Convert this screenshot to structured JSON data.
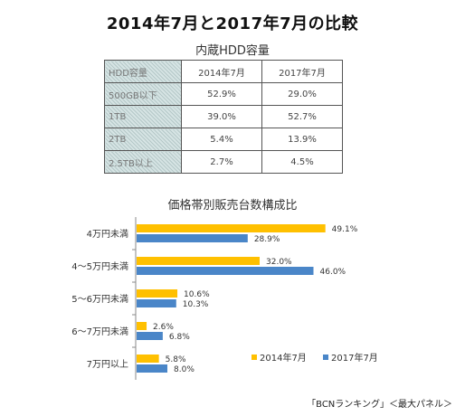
{
  "title": "2014年7月と2017年7月の比較",
  "table": {
    "title": "内蔵HDD容量",
    "header": [
      "HDD容量",
      "2014年7月",
      "2017年7月"
    ],
    "rows": [
      {
        "label": "500GB以下",
        "values": [
          "52.9%",
          "29.0%"
        ]
      },
      {
        "label": "1TB",
        "values": [
          "39.0%",
          "52.7%"
        ]
      },
      {
        "label": "2TB",
        "values": [
          "5.4%",
          "13.9%"
        ]
      },
      {
        "label": "2.5TB以上",
        "values": [
          "2.7%",
          "4.5%"
        ]
      }
    ]
  },
  "chart_data": {
    "type": "bar",
    "orientation": "horizontal",
    "title": "価格帯別販売台数構成比",
    "categories": [
      "4万円未満",
      "4～5万円未満",
      "5～6万円未満",
      "6～7万円未満",
      "7万円以上"
    ],
    "series": [
      {
        "name": "2014年7月",
        "color": "#ffc000",
        "values": [
          49.1,
          32.0,
          10.6,
          2.6,
          5.8
        ]
      },
      {
        "name": "2017年7月",
        "color": "#4a86c8",
        "values": [
          28.9,
          46.0,
          10.3,
          6.8,
          8.0
        ]
      }
    ],
    "value_format": "%",
    "xlim": [
      0,
      55
    ],
    "grid": false,
    "legend": "bottom-right"
  },
  "footer": "「BCNランキング」＜最大パネル＞"
}
